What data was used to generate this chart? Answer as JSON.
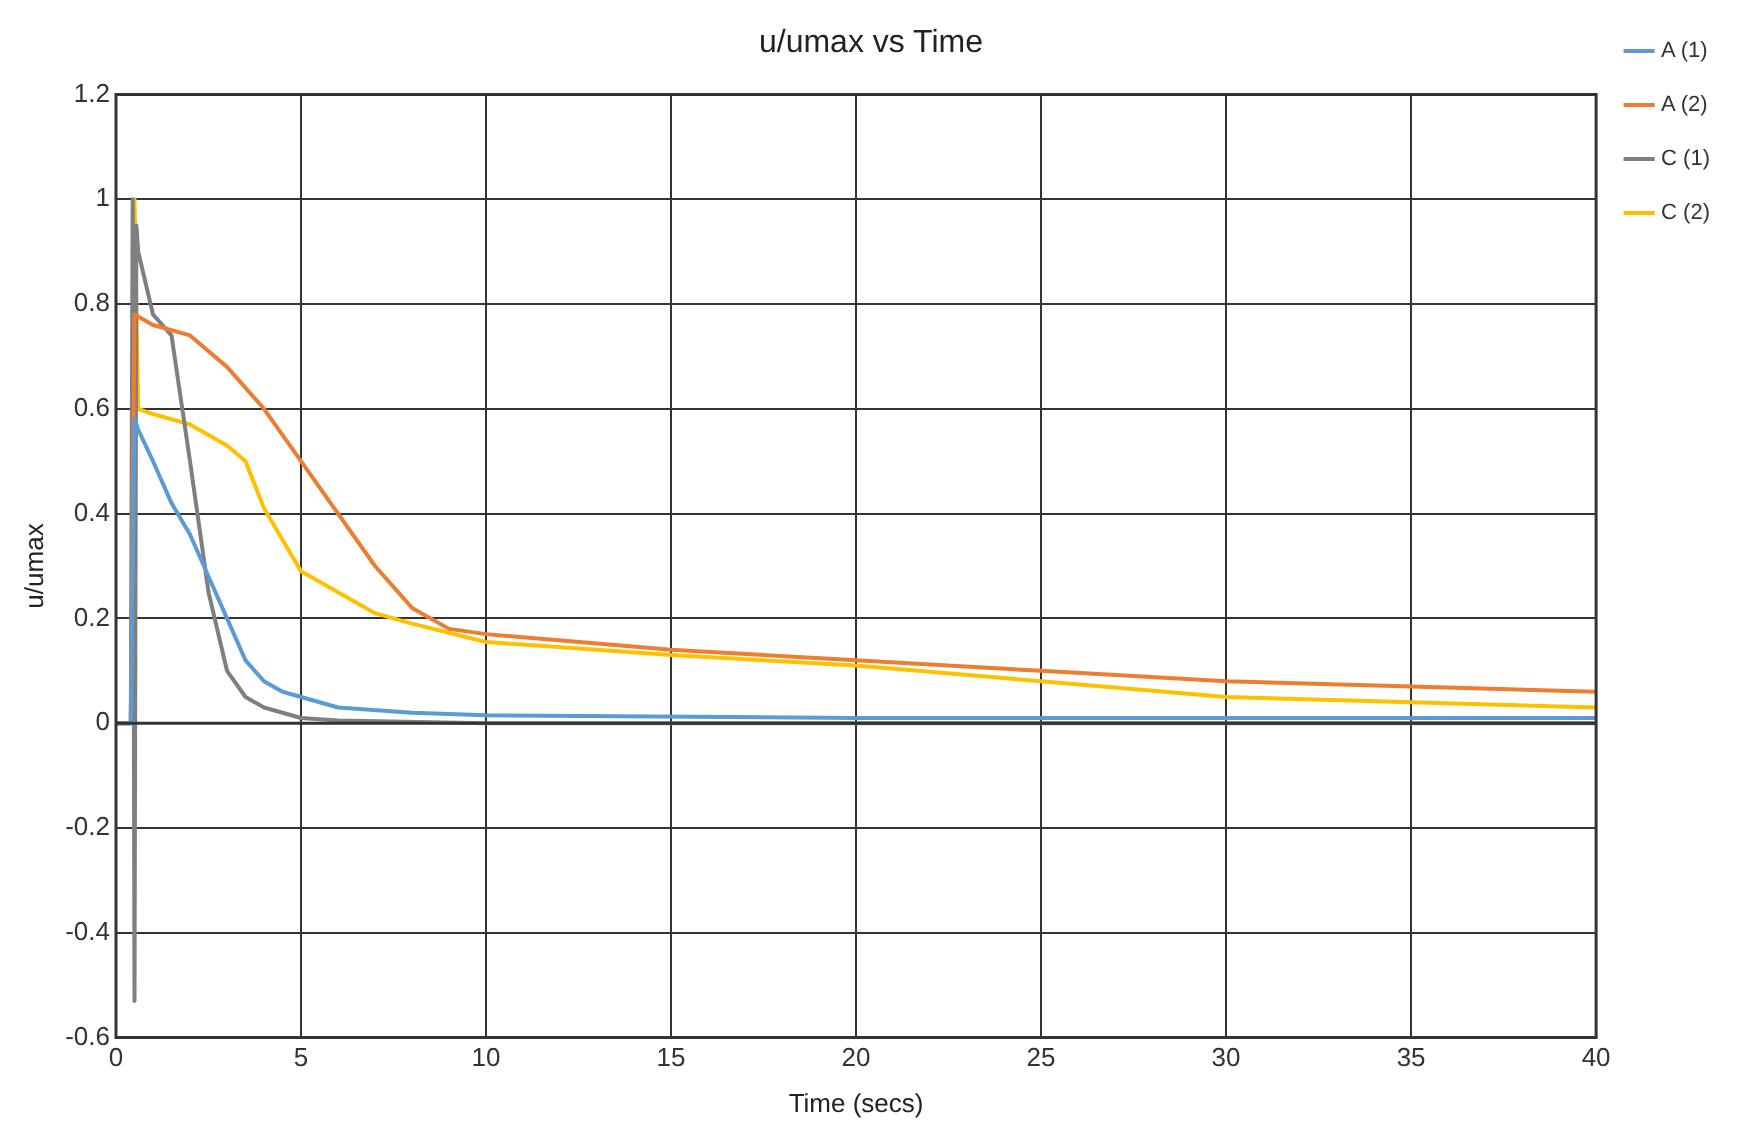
{
  "chart_data": {
    "type": "line",
    "title": "u/umax vs Time",
    "xlabel": "Time (secs)",
    "ylabel": "u/umax",
    "xlim": [
      0,
      40
    ],
    "xticks": [
      0,
      5,
      10,
      15,
      20,
      25,
      30,
      35,
      40
    ],
    "ylim": [
      -0.6,
      1.2
    ],
    "yticks": [
      -0.6,
      -0.4,
      -0.2,
      0,
      0.2,
      0.4,
      0.6,
      0.8,
      1,
      1.2
    ],
    "grid": true,
    "legend": "top right",
    "marker": "none",
    "line_style": "solid",
    "series": [
      {
        "name": "A (1)",
        "color": "#5b9bd5",
        "x": [
          0,
          0.4,
          0.5,
          0.6,
          1,
          1.5,
          2,
          2.5,
          3,
          3.5,
          4,
          4.5,
          5,
          6,
          8,
          10,
          20,
          40
        ],
        "values": [
          0,
          0,
          0.58,
          0.56,
          0.5,
          0.42,
          0.36,
          0.28,
          0.2,
          0.12,
          0.08,
          0.06,
          0.05,
          0.03,
          0.02,
          0.015,
          0.01,
          0.01
        ]
      },
      {
        "name": "A (2)",
        "color": "#ed7d31",
        "x": [
          0,
          0.4,
          0.5,
          1,
          2,
          3,
          4,
          5,
          6,
          7,
          8,
          9,
          10,
          15,
          20,
          25,
          30,
          35,
          40
        ],
        "values": [
          0,
          0,
          0.78,
          0.76,
          0.74,
          0.68,
          0.6,
          0.5,
          0.4,
          0.3,
          0.22,
          0.18,
          0.17,
          0.14,
          0.12,
          0.1,
          0.08,
          0.07,
          0.06
        ]
      },
      {
        "name": "C (1)",
        "color": "#7f7f7f",
        "x": [
          0,
          0.4,
          0.45,
          0.5,
          0.55,
          0.6,
          1,
          1.5,
          2,
          2.5,
          3,
          3.5,
          4,
          5,
          6,
          10,
          40
        ],
        "values": [
          0,
          0,
          1,
          -0.53,
          0.95,
          0.9,
          0.78,
          0.74,
          0.5,
          0.25,
          0.1,
          0.05,
          0.03,
          0.01,
          0.005,
          0,
          0
        ]
      },
      {
        "name": "C (2)",
        "color": "#ffc000",
        "x": [
          0,
          0.4,
          0.5,
          0.6,
          1,
          2,
          3,
          3.5,
          4,
          4.5,
          5,
          6,
          7,
          8,
          10,
          15,
          20,
          25,
          30,
          35,
          40
        ],
        "values": [
          0,
          0,
          1,
          0.6,
          0.59,
          0.57,
          0.53,
          0.5,
          0.41,
          0.35,
          0.29,
          0.25,
          0.21,
          0.19,
          0.155,
          0.13,
          0.11,
          0.08,
          0.05,
          0.04,
          0.03
        ]
      }
    ]
  }
}
